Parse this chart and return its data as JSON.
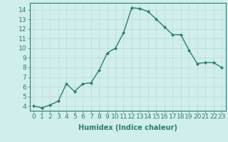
{
  "x": [
    0,
    1,
    2,
    3,
    4,
    5,
    6,
    7,
    8,
    9,
    10,
    11,
    12,
    13,
    14,
    15,
    16,
    17,
    18,
    19,
    20,
    21,
    22,
    23
  ],
  "y": [
    4.0,
    3.8,
    4.1,
    4.5,
    6.3,
    5.5,
    6.3,
    6.4,
    7.7,
    9.5,
    10.0,
    11.6,
    14.2,
    14.1,
    13.8,
    13.0,
    12.2,
    11.4,
    11.4,
    9.8,
    8.4,
    8.5,
    8.5,
    8.0
  ],
  "line_color": "#2e7d6e",
  "marker": "D",
  "marker_size": 2.0,
  "bg_color": "#d0eeec",
  "grid_color": "#b8d8d6",
  "xlabel": "Humidex (Indice chaleur)",
  "ylim": [
    3.5,
    14.7
  ],
  "xlim": [
    -0.5,
    23.5
  ],
  "yticks": [
    4,
    5,
    6,
    7,
    8,
    9,
    10,
    11,
    12,
    13,
    14
  ],
  "xticks": [
    0,
    1,
    2,
    3,
    4,
    5,
    6,
    7,
    8,
    9,
    10,
    11,
    12,
    13,
    14,
    15,
    16,
    17,
    18,
    19,
    20,
    21,
    22,
    23
  ],
  "xlabel_fontsize": 7,
  "tick_fontsize": 6.5,
  "line_width": 1.0
}
